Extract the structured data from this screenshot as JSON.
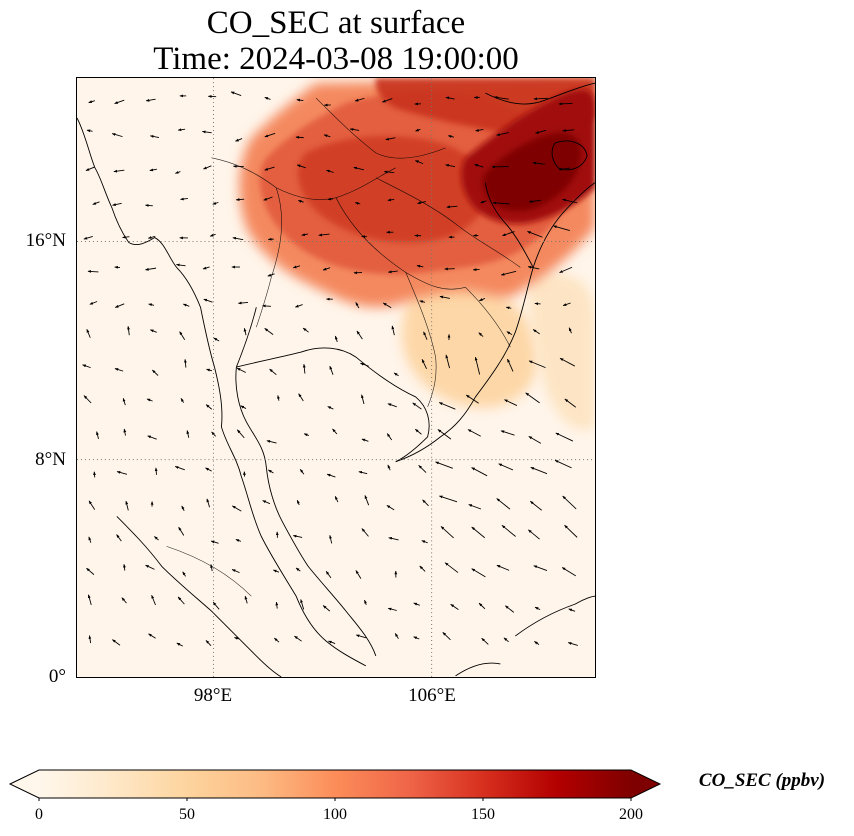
{
  "figure": {
    "title_line_1": "CO_SEC at surface",
    "title_line_2": "Time: 2024-03-08 19:00:00"
  },
  "map": {
    "lat_labels": [
      "16°N",
      "8°N",
      "0°"
    ],
    "lon_labels": [
      "98°E",
      "106°E"
    ],
    "extent": {
      "lon_min": 93,
      "lon_max": 112,
      "lat_min": 0,
      "lat_max": 22
    },
    "gridlines": {
      "lons": [
        98,
        106
      ],
      "lats": [
        16,
        8
      ],
      "style": "dotted",
      "color": "#888888"
    }
  },
  "colorbar": {
    "label": "CO_SEC (ppbv)",
    "ticks": [
      "0",
      "50",
      "100",
      "150",
      "200"
    ],
    "min": 0,
    "max": 200,
    "extend": "both",
    "colormap": "OrRd",
    "colors": [
      "#fff7ec",
      "#fee8c8",
      "#fdd49e",
      "#fdbb84",
      "#fc8d59",
      "#ef6548",
      "#d7301f",
      "#b30000",
      "#7f0000"
    ]
  }
}
